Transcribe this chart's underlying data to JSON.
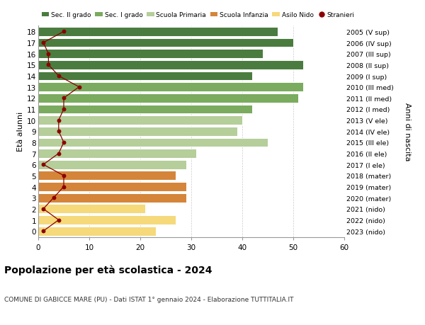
{
  "ages": [
    18,
    17,
    16,
    15,
    14,
    13,
    12,
    11,
    10,
    9,
    8,
    7,
    6,
    5,
    4,
    3,
    2,
    1,
    0
  ],
  "right_labels": [
    "2005 (V sup)",
    "2006 (IV sup)",
    "2007 (III sup)",
    "2008 (II sup)",
    "2009 (I sup)",
    "2010 (III med)",
    "2011 (II med)",
    "2012 (I med)",
    "2013 (V ele)",
    "2014 (IV ele)",
    "2015 (III ele)",
    "2016 (II ele)",
    "2017 (I ele)",
    "2018 (mater)",
    "2019 (mater)",
    "2020 (mater)",
    "2021 (nido)",
    "2022 (nido)",
    "2023 (nido)"
  ],
  "bar_values": [
    47,
    50,
    44,
    52,
    42,
    52,
    51,
    42,
    40,
    39,
    45,
    31,
    29,
    27,
    29,
    29,
    21,
    27,
    23
  ],
  "stranieri": [
    5,
    1,
    2,
    2,
    4,
    8,
    5,
    5,
    4,
    4,
    5,
    4,
    1,
    5,
    5,
    3,
    1,
    4,
    1
  ],
  "bar_colors": [
    "#4a7c3f",
    "#4a7c3f",
    "#4a7c3f",
    "#4a7c3f",
    "#4a7c3f",
    "#7aab5e",
    "#7aab5e",
    "#7aab5e",
    "#b5ce9a",
    "#b5ce9a",
    "#b5ce9a",
    "#b5ce9a",
    "#b5ce9a",
    "#d4853a",
    "#d4853a",
    "#d4853a",
    "#f5d97a",
    "#f5d97a",
    "#f5d97a"
  ],
  "stranieri_color": "#8b0000",
  "right_ylabel": "Anni di nascita",
  "xlim": [
    0,
    60
  ],
  "xticks": [
    0,
    10,
    20,
    30,
    40,
    50,
    60
  ],
  "title": "Popolazione per eta scolastica - 2024",
  "subtitle": "COMUNE DI GABICCE MARE (PU) - Dati ISTAT 1° gennaio 2024 - Elaborazione TUTTITALIA.IT",
  "legend_labels": [
    "Sec. II grado",
    "Sec. I grado",
    "Scuola Primaria",
    "Scuola Infanzia",
    "Asilo Nido",
    "Stranieri"
  ],
  "legend_colors": [
    "#4a7c3f",
    "#7aab5e",
    "#b5ce9a",
    "#d4853a",
    "#f5d97a",
    "#8b0000"
  ],
  "background_color": "#ffffff",
  "grid_color": "#cccccc"
}
